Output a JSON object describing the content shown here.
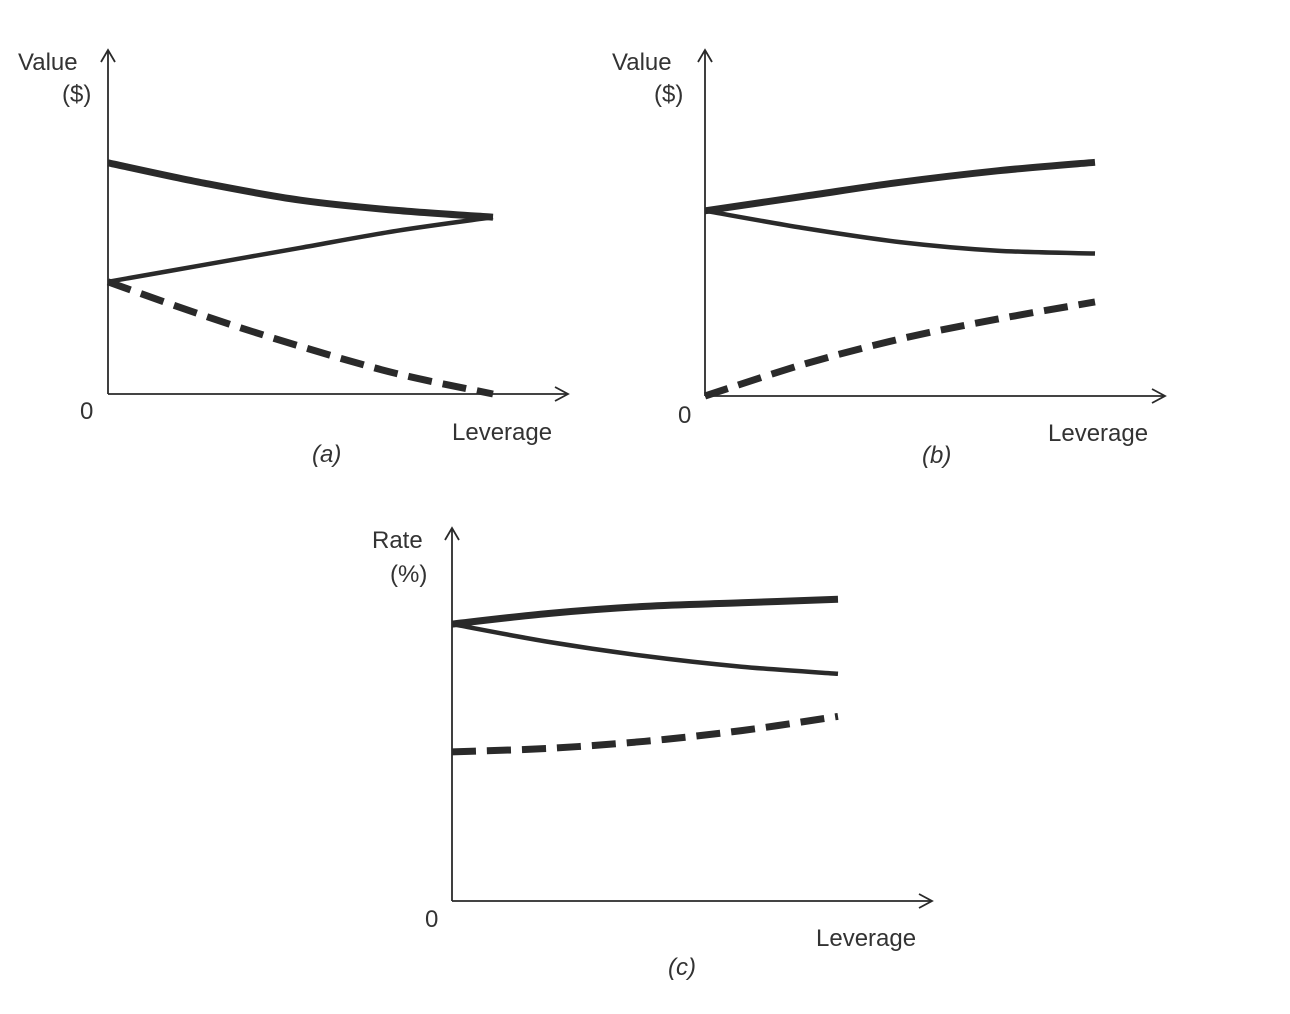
{
  "chart_data": [
    {
      "type": "line",
      "panel_label": "(a)",
      "ylabel_line1": "Value",
      "ylabel_line2": "($)",
      "xlabel": "Leverage",
      "origin_label": "0",
      "xlim": [
        0,
        1.2
      ],
      "ylim": [
        0,
        1
      ],
      "grid": false,
      "series": [
        {
          "style": "thick-solid",
          "x": [
            0,
            0.25,
            0.5,
            0.75,
            1.0
          ],
          "y": [
            0.68,
            0.62,
            0.57,
            0.54,
            0.52
          ]
        },
        {
          "style": "thin-solid",
          "x": [
            0,
            0.25,
            0.5,
            0.75,
            1.0
          ],
          "y": [
            0.33,
            0.38,
            0.43,
            0.48,
            0.52
          ]
        },
        {
          "style": "dashed",
          "x": [
            0,
            0.25,
            0.5,
            0.75,
            1.0
          ],
          "y": [
            0.33,
            0.23,
            0.14,
            0.06,
            0.0
          ]
        }
      ]
    },
    {
      "type": "line",
      "panel_label": "(b)",
      "ylabel_line1": "Value",
      "ylabel_line2": "($)",
      "xlabel": "Leverage",
      "origin_label": "0",
      "xlim": [
        0,
        1.2
      ],
      "ylim": [
        0,
        1
      ],
      "grid": false,
      "series": [
        {
          "style": "thick-solid",
          "x": [
            0,
            0.25,
            0.5,
            0.75,
            1.0
          ],
          "y": [
            0.65,
            0.7,
            0.75,
            0.79,
            0.82
          ]
        },
        {
          "style": "thin-solid",
          "x": [
            0,
            0.25,
            0.5,
            0.75,
            1.0
          ],
          "y": [
            0.65,
            0.59,
            0.54,
            0.51,
            0.5
          ]
        },
        {
          "style": "dashed",
          "x": [
            0,
            0.25,
            0.5,
            0.75,
            1.0
          ],
          "y": [
            0.0,
            0.11,
            0.2,
            0.27,
            0.33
          ]
        }
      ]
    },
    {
      "type": "line",
      "panel_label": "(c)",
      "ylabel_line1": "Rate",
      "ylabel_line2": "(%)",
      "xlabel": "Leverage",
      "origin_label": "0",
      "xlim": [
        0,
        1.2
      ],
      "ylim": [
        0,
        1
      ],
      "grid": false,
      "series": [
        {
          "style": "thick-solid",
          "x": [
            0,
            0.25,
            0.5,
            0.75,
            1.0
          ],
          "y": [
            0.78,
            0.81,
            0.83,
            0.84,
            0.85
          ]
        },
        {
          "style": "thin-solid",
          "x": [
            0,
            0.25,
            0.5,
            0.75,
            1.0
          ],
          "y": [
            0.78,
            0.73,
            0.69,
            0.66,
            0.64
          ]
        },
        {
          "style": "dashed",
          "x": [
            0,
            0.25,
            0.5,
            0.75,
            1.0
          ],
          "y": [
            0.42,
            0.43,
            0.45,
            0.48,
            0.52
          ]
        }
      ]
    }
  ],
  "colors": {
    "ink": "#2a2a2a",
    "text": "#333333",
    "background": "#ffffff"
  }
}
